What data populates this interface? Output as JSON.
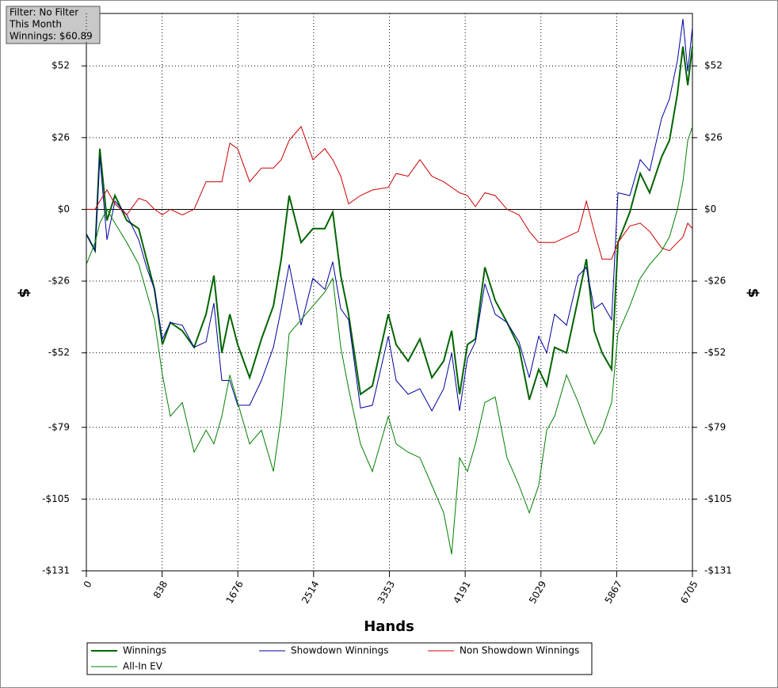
{
  "chart_data": {
    "type": "line",
    "info": [
      "Filter: No Filter",
      "This Month",
      "Winnings: $60.89"
    ],
    "x_label": "Hands",
    "y_label": "$",
    "y2_label": "$",
    "xlim": [
      0,
      6705
    ],
    "xticks": [
      0,
      838,
      1676,
      2514,
      3353,
      4191,
      5029,
      5867,
      6705
    ],
    "ylim": [
      -131,
      71
    ],
    "yticks": [
      {
        "value": -131,
        "label": "-$131"
      },
      {
        "value": -105,
        "label": "-$105"
      },
      {
        "value": -79,
        "label": "-$79"
      },
      {
        "value": -52,
        "label": "-$52"
      },
      {
        "value": -26,
        "label": "-$26"
      },
      {
        "value": 0,
        "label": "$0"
      },
      {
        "value": 26,
        "label": "$26"
      },
      {
        "value": 52,
        "label": "$52"
      }
    ],
    "grid": true,
    "x": [
      0,
      96,
      149,
      228,
      316,
      447,
      579,
      666,
      754,
      841,
      929,
      1061,
      1192,
      1324,
      1411,
      1499,
      1587,
      1674,
      1806,
      1937,
      2069,
      2156,
      2244,
      2375,
      2507,
      2638,
      2726,
      2814,
      2901,
      3033,
      3164,
      3340,
      3427,
      3559,
      3690,
      3822,
      3953,
      4041,
      4129,
      4216,
      4304,
      4409,
      4523,
      4654,
      4786,
      4900,
      5005,
      5093,
      5180,
      5312,
      5443,
      5531,
      5619,
      5706,
      5811,
      5881,
      6013,
      6127,
      6232,
      6364,
      6451,
      6539,
      6600,
      6653,
      6705
    ],
    "series": [
      {
        "name": "Winnings",
        "color": "#006400",
        "line_width": 2,
        "values": [
          -9,
          -15,
          22,
          -4,
          5,
          -4,
          -7,
          -18,
          -29,
          -49,
          -41,
          -44,
          -50,
          -38,
          -24,
          -52,
          -38,
          -49,
          -61,
          -47,
          -35,
          -18,
          5,
          -12,
          -7,
          -7,
          -1,
          -24,
          -38,
          -67,
          -64,
          -38,
          -49,
          -55,
          -47,
          -61,
          -55,
          -44,
          -67,
          -49,
          -47,
          -21,
          -33,
          -41,
          -50,
          -69,
          -58,
          -64,
          -50,
          -52,
          -32,
          -18,
          -44,
          -52,
          -58,
          -12,
          -1,
          13,
          6,
          19,
          25,
          42,
          59,
          45,
          59
        ]
      },
      {
        "name": "Showdown Winnings",
        "color": "#0000a0",
        "line_width": 1,
        "values": [
          -9,
          -15,
          19,
          -11,
          3,
          -2,
          -11,
          -21,
          -29,
          -47,
          -41,
          -42,
          -50,
          -48,
          -34,
          -62,
          -62,
          -71,
          -71,
          -62,
          -50,
          -36,
          -20,
          -42,
          -25,
          -29,
          -19,
          -36,
          -40,
          -72,
          -71,
          -46,
          -62,
          -67,
          -65,
          -73,
          -65,
          -52,
          -73,
          -54,
          -48,
          -27,
          -38,
          -41,
          -48,
          -61,
          -46,
          -52,
          -38,
          -42,
          -24,
          -21,
          -36,
          -34,
          -40,
          6,
          5,
          18,
          14,
          33,
          40,
          54,
          69,
          50,
          66
        ]
      },
      {
        "name": "Non Showdown Winnings",
        "color": "#cc0000",
        "line_width": 1,
        "values": [
          0,
          0,
          3,
          7,
          2,
          -2,
          4,
          3,
          0,
          -2,
          0,
          -2,
          0,
          10,
          10,
          10,
          24,
          22,
          10,
          15,
          15,
          18,
          25,
          30,
          18,
          22,
          18,
          12,
          2,
          5,
          7,
          8,
          13,
          12,
          18,
          12,
          10,
          8,
          6,
          5,
          1,
          6,
          5,
          0,
          -2,
          -8,
          -12,
          -12,
          -12,
          -10,
          -8,
          3,
          -8,
          -18,
          -18,
          -12,
          -6,
          -5,
          -8,
          -14,
          -15,
          -12,
          -10,
          -5,
          -7
        ]
      },
      {
        "name": "All-In EV",
        "color": "#008000",
        "line_width": 1,
        "values": [
          -20,
          -12,
          -5,
          0,
          -5,
          -12,
          -20,
          -30,
          -40,
          -60,
          -75,
          -70,
          -88,
          -80,
          -85,
          -75,
          -60,
          -70,
          -85,
          -80,
          -95,
          -75,
          -45,
          -40,
          -35,
          -30,
          -25,
          -50,
          -65,
          -85,
          -95,
          -75,
          -85,
          -88,
          -90,
          -100,
          -110,
          -125,
          -90,
          -95,
          -85,
          -70,
          -68,
          -90,
          -100,
          -110,
          -100,
          -80,
          -75,
          -60,
          -70,
          -78,
          -85,
          -80,
          -70,
          -45,
          -35,
          -25,
          -20,
          -15,
          -10,
          0,
          10,
          25,
          30
        ]
      }
    ]
  }
}
